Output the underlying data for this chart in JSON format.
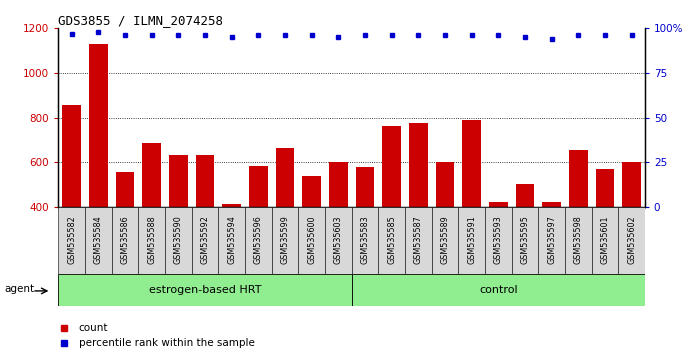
{
  "title": "GDS3855 / ILMN_2074258",
  "samples": [
    "GSM535582",
    "GSM535584",
    "GSM535586",
    "GSM535588",
    "GSM535590",
    "GSM535592",
    "GSM535594",
    "GSM535596",
    "GSM535599",
    "GSM535600",
    "GSM535603",
    "GSM535583",
    "GSM535585",
    "GSM535587",
    "GSM535589",
    "GSM535591",
    "GSM535593",
    "GSM535595",
    "GSM535597",
    "GSM535598",
    "GSM535601",
    "GSM535602"
  ],
  "counts": [
    855,
    1130,
    555,
    685,
    635,
    635,
    415,
    585,
    665,
    540,
    600,
    580,
    765,
    775,
    600,
    790,
    425,
    505,
    425,
    655,
    570,
    600
  ],
  "percentiles": [
    97,
    98,
    96,
    96,
    96,
    96,
    95,
    96,
    96,
    96,
    95,
    96,
    96,
    96,
    96,
    96,
    96,
    95,
    94,
    96,
    96,
    96
  ],
  "groups": [
    {
      "label": "estrogen-based HRT",
      "start": 0,
      "end": 11,
      "color": "#90EE90"
    },
    {
      "label": "control",
      "start": 11,
      "end": 22,
      "color": "#90EE90"
    }
  ],
  "ylim_left": [
    400,
    1200
  ],
  "ylim_right": [
    0,
    100
  ],
  "yticks_left": [
    400,
    600,
    800,
    1000,
    1200
  ],
  "yticks_right": [
    0,
    25,
    50,
    75,
    100
  ],
  "bar_color": "#CC0000",
  "dot_color": "#0000CC",
  "plot_bg_color": "#ffffff",
  "tick_bg_color": "#d8d8d8",
  "grid_color": "#000000",
  "legend_count_label": "count",
  "legend_pct_label": "percentile rank within the sample",
  "agent_label": "agent"
}
